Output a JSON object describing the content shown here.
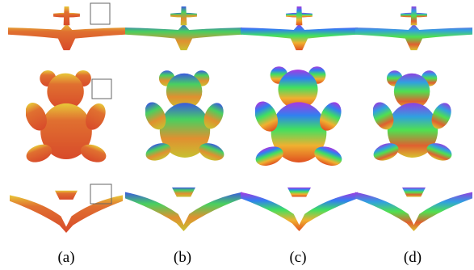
{
  "figure": {
    "labels": [
      "(a)",
      "(b)",
      "(c)",
      "(d)"
    ]
  }
}
